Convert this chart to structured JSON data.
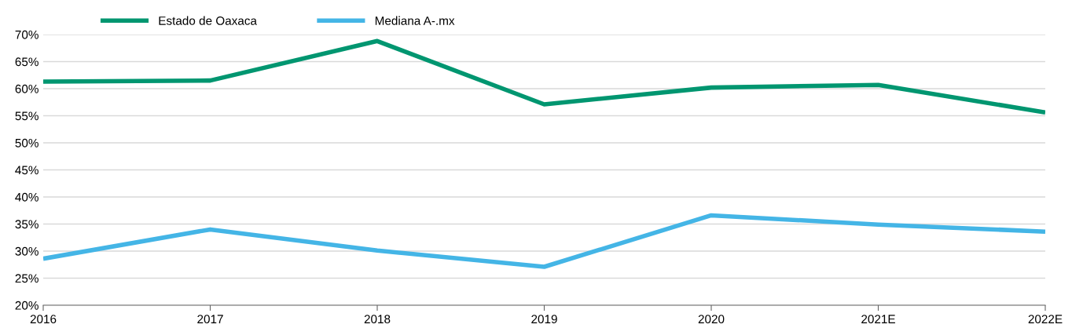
{
  "chart_data": {
    "type": "line",
    "categories": [
      "2016",
      "2017",
      "2018",
      "2019",
      "2020",
      "2021E",
      "2022E"
    ],
    "series": [
      {
        "name": "Estado de Oaxaca",
        "color": "#009670",
        "values": [
          61.3,
          61.5,
          68.8,
          57.1,
          60.2,
          60.7,
          55.6
        ]
      },
      {
        "name": "Mediana A-.mx",
        "color": "#44b5e6",
        "values": [
          28.6,
          34.0,
          30.1,
          27.1,
          36.6,
          34.9,
          33.6
        ]
      }
    ],
    "ylim": [
      20,
      70
    ],
    "yticks": [
      {
        "value": 20,
        "label": "20%"
      },
      {
        "value": 25,
        "label": "25%"
      },
      {
        "value": 30,
        "label": "30%"
      },
      {
        "value": 35,
        "label": "35%"
      },
      {
        "value": 40,
        "label": "40%"
      },
      {
        "value": 45,
        "label": "45%"
      },
      {
        "value": 50,
        "label": "50%"
      },
      {
        "value": 55,
        "label": "55%"
      },
      {
        "value": 60,
        "label": "60%"
      },
      {
        "value": 65,
        "label": "65%"
      },
      {
        "value": 70,
        "label": "70%"
      }
    ],
    "grid": "y",
    "legend": "top left",
    "marker": "none",
    "line_style": "solid"
  }
}
